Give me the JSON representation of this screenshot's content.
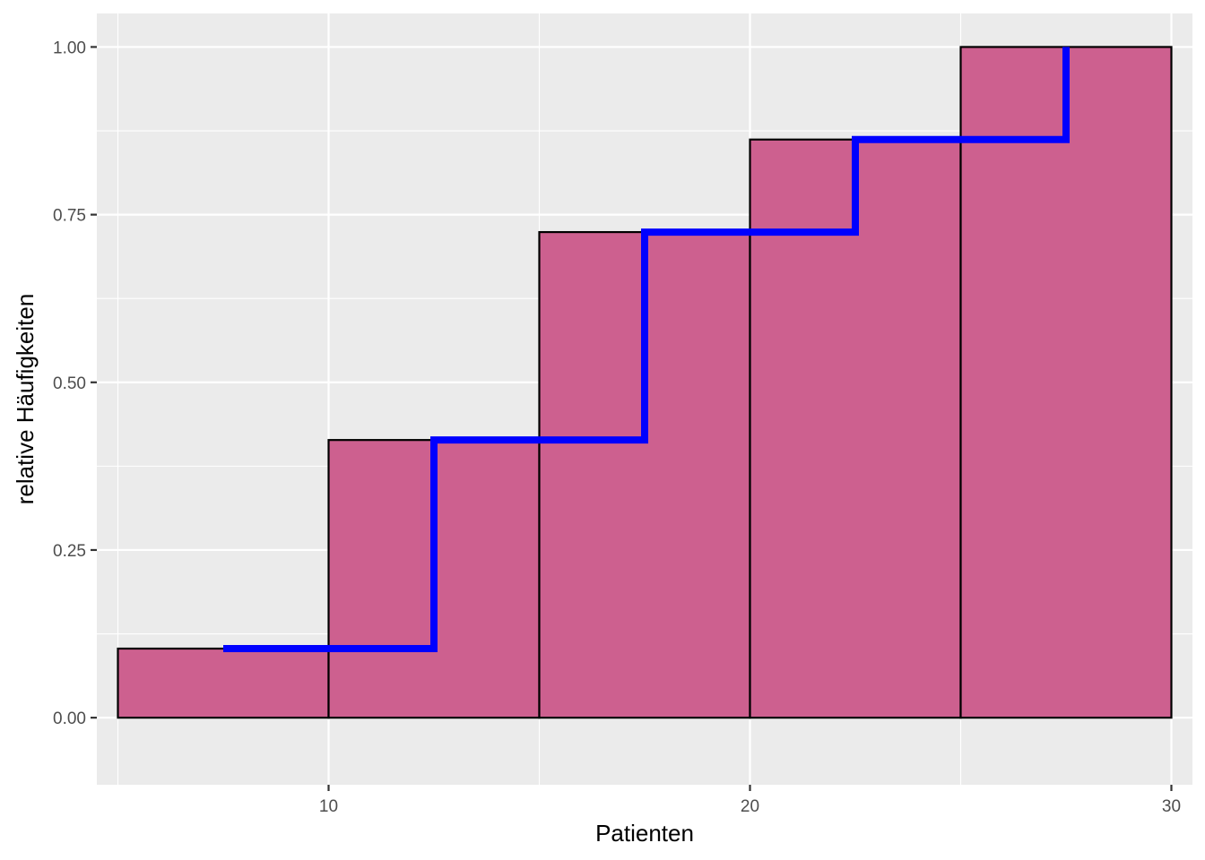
{
  "chart_data": {
    "type": "bar",
    "xlabel": "Patienten",
    "ylabel": "relative Häufigkeiten",
    "xlim": [
      4.5,
      30.5
    ],
    "ylim": [
      -0.1,
      1.05
    ],
    "x_ticks": [
      10,
      20,
      30
    ],
    "x_tick_labels": [
      "10",
      "20",
      "30"
    ],
    "y_ticks": [
      0,
      0.25,
      0.5,
      0.75,
      1.0
    ],
    "y_tick_labels": [
      "0.00",
      "0.25",
      "0.50",
      "0.75",
      "1.00"
    ],
    "grid": true,
    "bins": [
      {
        "x0": 5,
        "x1": 10,
        "value": 0.103
      },
      {
        "x0": 10,
        "x1": 15,
        "value": 0.414
      },
      {
        "x0": 15,
        "x1": 20,
        "value": 0.724
      },
      {
        "x0": 20,
        "x1": 25,
        "value": 0.862
      },
      {
        "x0": 25,
        "x1": 30,
        "value": 1.0
      }
    ],
    "step_line": {
      "x": [
        7.5,
        12.5,
        17.5,
        22.5,
        27.5
      ],
      "y": [
        0.103,
        0.414,
        0.724,
        0.862,
        1.0
      ]
    },
    "colors": {
      "panel": "#ebebeb",
      "grid": "#ffffff",
      "bar_fill": "#cd608f",
      "bar_outline": "#000000",
      "step_line": "#0000ff"
    }
  }
}
